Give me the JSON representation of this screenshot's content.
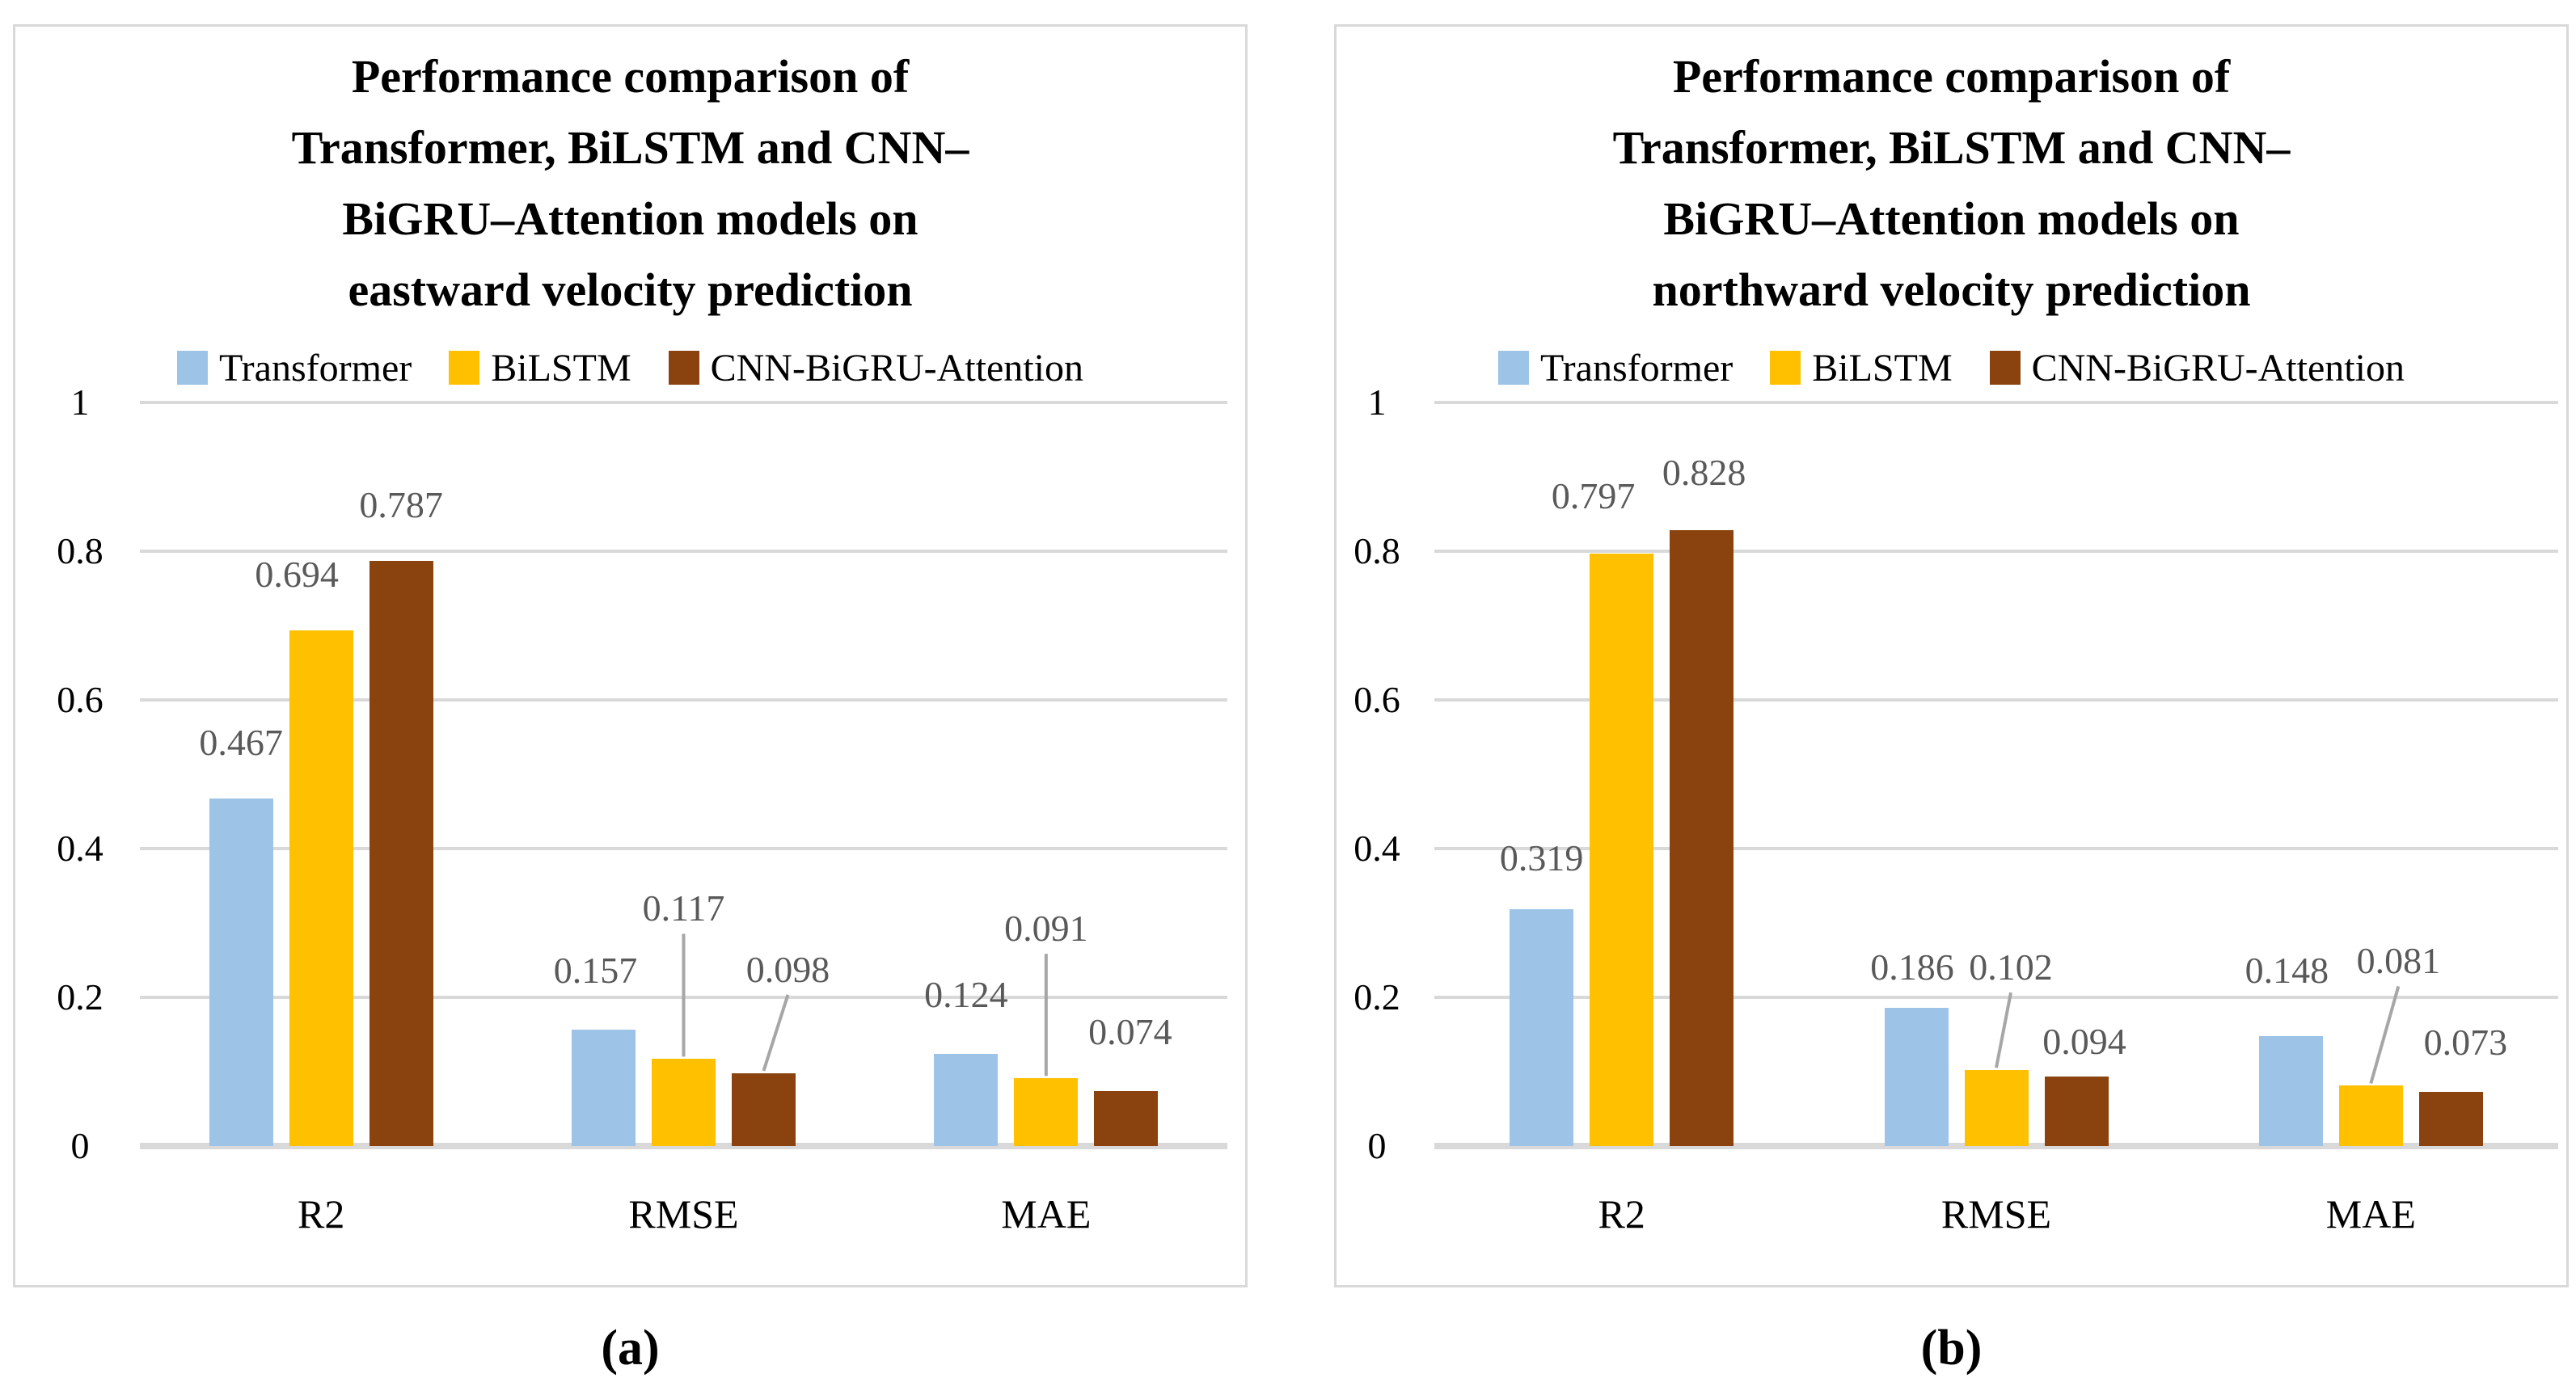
{
  "figure": {
    "background": "#ffffff",
    "captions": [
      "(a)",
      "(b)"
    ]
  },
  "colors": {
    "series": [
      "#9DC3E6",
      "#FFC000",
      "#8A430F"
    ],
    "gridline": "#D9D9D9",
    "panel_border": "#D9D9D9",
    "data_label": "#595959",
    "leader_line": "#A6A6A6",
    "text": "#000000"
  },
  "chart_data": [
    {
      "type": "bar",
      "title_lines": [
        "Performance comparison of",
        "Transformer, BiLSTM and CNN–",
        "BiGRU–Attention models on",
        "eastward velocity prediction"
      ],
      "legend": [
        "Transformer",
        "BiLSTM",
        "CNN-BiGRU-Attention"
      ],
      "legend_position": "top",
      "categories": [
        "R2",
        "RMSE",
        "MAE"
      ],
      "series": [
        {
          "name": "Transformer",
          "values": [
            0.467,
            0.157,
            0.124
          ],
          "labels": [
            "0.467",
            "0.157",
            "0.124"
          ]
        },
        {
          "name": "BiLSTM",
          "values": [
            0.694,
            0.117,
            0.091
          ],
          "labels": [
            "0.694",
            "0.117",
            "0.091"
          ]
        },
        {
          "name": "CNN-BiGRU-Attention",
          "values": [
            0.787,
            0.098,
            0.074
          ],
          "labels": [
            "0.787",
            "0.098",
            "0.074"
          ]
        }
      ],
      "y_ticks": [
        "1",
        "0.8",
        "0.6",
        "0.4",
        "0.2",
        "0"
      ],
      "ylim": [
        0,
        1
      ],
      "grid": true,
      "leader_lines": [
        {
          "category": "RMSE",
          "series": "BiLSTM"
        },
        {
          "category": "RMSE",
          "series": "CNN-BiGRU-Attention"
        },
        {
          "category": "MAE",
          "series": "BiLSTM"
        }
      ],
      "caption": "(a)"
    },
    {
      "type": "bar",
      "title_lines": [
        "Performance comparison of",
        "Transformer, BiLSTM and CNN–",
        "BiGRU–Attention models on",
        "northward velocity prediction"
      ],
      "legend": [
        "Transformer",
        "BiLSTM",
        "CNN-BiGRU-Attention"
      ],
      "legend_position": "top",
      "categories": [
        "R2",
        "RMSE",
        "MAE"
      ],
      "series": [
        {
          "name": "Transformer",
          "values": [
            0.319,
            0.186,
            0.148
          ],
          "labels": [
            "0.319",
            "0.186",
            "0.148"
          ]
        },
        {
          "name": "BiLSTM",
          "values": [
            0.797,
            0.102,
            0.081
          ],
          "labels": [
            "0.797",
            "0.102",
            "0.081"
          ]
        },
        {
          "name": "CNN-BiGRU-Attention",
          "values": [
            0.828,
            0.094,
            0.073
          ],
          "labels": [
            "0.828",
            "0.094",
            "0.073"
          ]
        }
      ],
      "y_ticks": [
        "1",
        "0.8",
        "0.6",
        "0.4",
        "0.2",
        "0"
      ],
      "ylim": [
        0,
        1
      ],
      "grid": true,
      "leader_lines": [
        {
          "category": "RMSE",
          "series": "BiLSTM"
        },
        {
          "category": "MAE",
          "series": "BiLSTM"
        }
      ],
      "caption": "(b)"
    }
  ]
}
